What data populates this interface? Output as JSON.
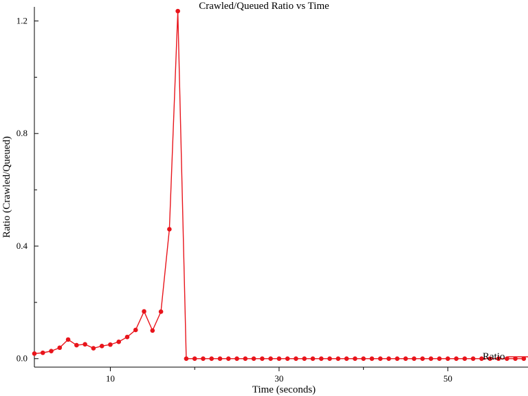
{
  "chart_data": {
    "type": "line",
    "title": "Crawled/Queued Ratio vs Time",
    "xlabel": "Time (seconds)",
    "ylabel": "Ratio (Crawled/Queued)",
    "xlim": [
      1,
      59.5
    ],
    "ylim": [
      -0.03,
      1.25
    ],
    "x_ticks": [
      10,
      30,
      50
    ],
    "x_minor_ticks": [
      20,
      40
    ],
    "y_ticks": [
      0.0,
      0.4,
      0.8,
      1.2
    ],
    "y_tick_labels": [
      "0.0",
      "0.4",
      "0.8",
      "1.2"
    ],
    "y_minor_ticks": [
      0.2,
      0.6,
      1.0
    ],
    "grid": false,
    "legend": "bottom-right",
    "series": [
      {
        "name": "Ratio",
        "color": "#e8141b",
        "x": [
          1,
          2,
          3,
          4,
          5,
          6,
          7,
          8,
          9,
          10,
          11,
          12,
          13,
          14,
          15,
          16,
          17,
          18,
          19,
          20,
          21,
          22,
          23,
          24,
          25,
          26,
          27,
          28,
          29,
          30,
          31,
          32,
          33,
          34,
          35,
          36,
          37,
          38,
          39,
          40,
          41,
          42,
          43,
          44,
          45,
          46,
          47,
          48,
          49,
          50,
          51,
          52,
          53,
          54,
          55,
          56,
          57,
          58,
          59
        ],
        "y": [
          0.018,
          0.021,
          0.027,
          0.039,
          0.068,
          0.048,
          0.051,
          0.037,
          0.045,
          0.05,
          0.06,
          0.077,
          0.102,
          0.168,
          0.1,
          0.167,
          0.46,
          1.235,
          0,
          0,
          0,
          0,
          0,
          0,
          0,
          0,
          0,
          0,
          0,
          0,
          0,
          0,
          0,
          0,
          0,
          0,
          0,
          0,
          0,
          0,
          0,
          0,
          0,
          0,
          0,
          0,
          0,
          0,
          0,
          0,
          0,
          0,
          0,
          0,
          0,
          0,
          0,
          0,
          0
        ]
      }
    ]
  }
}
